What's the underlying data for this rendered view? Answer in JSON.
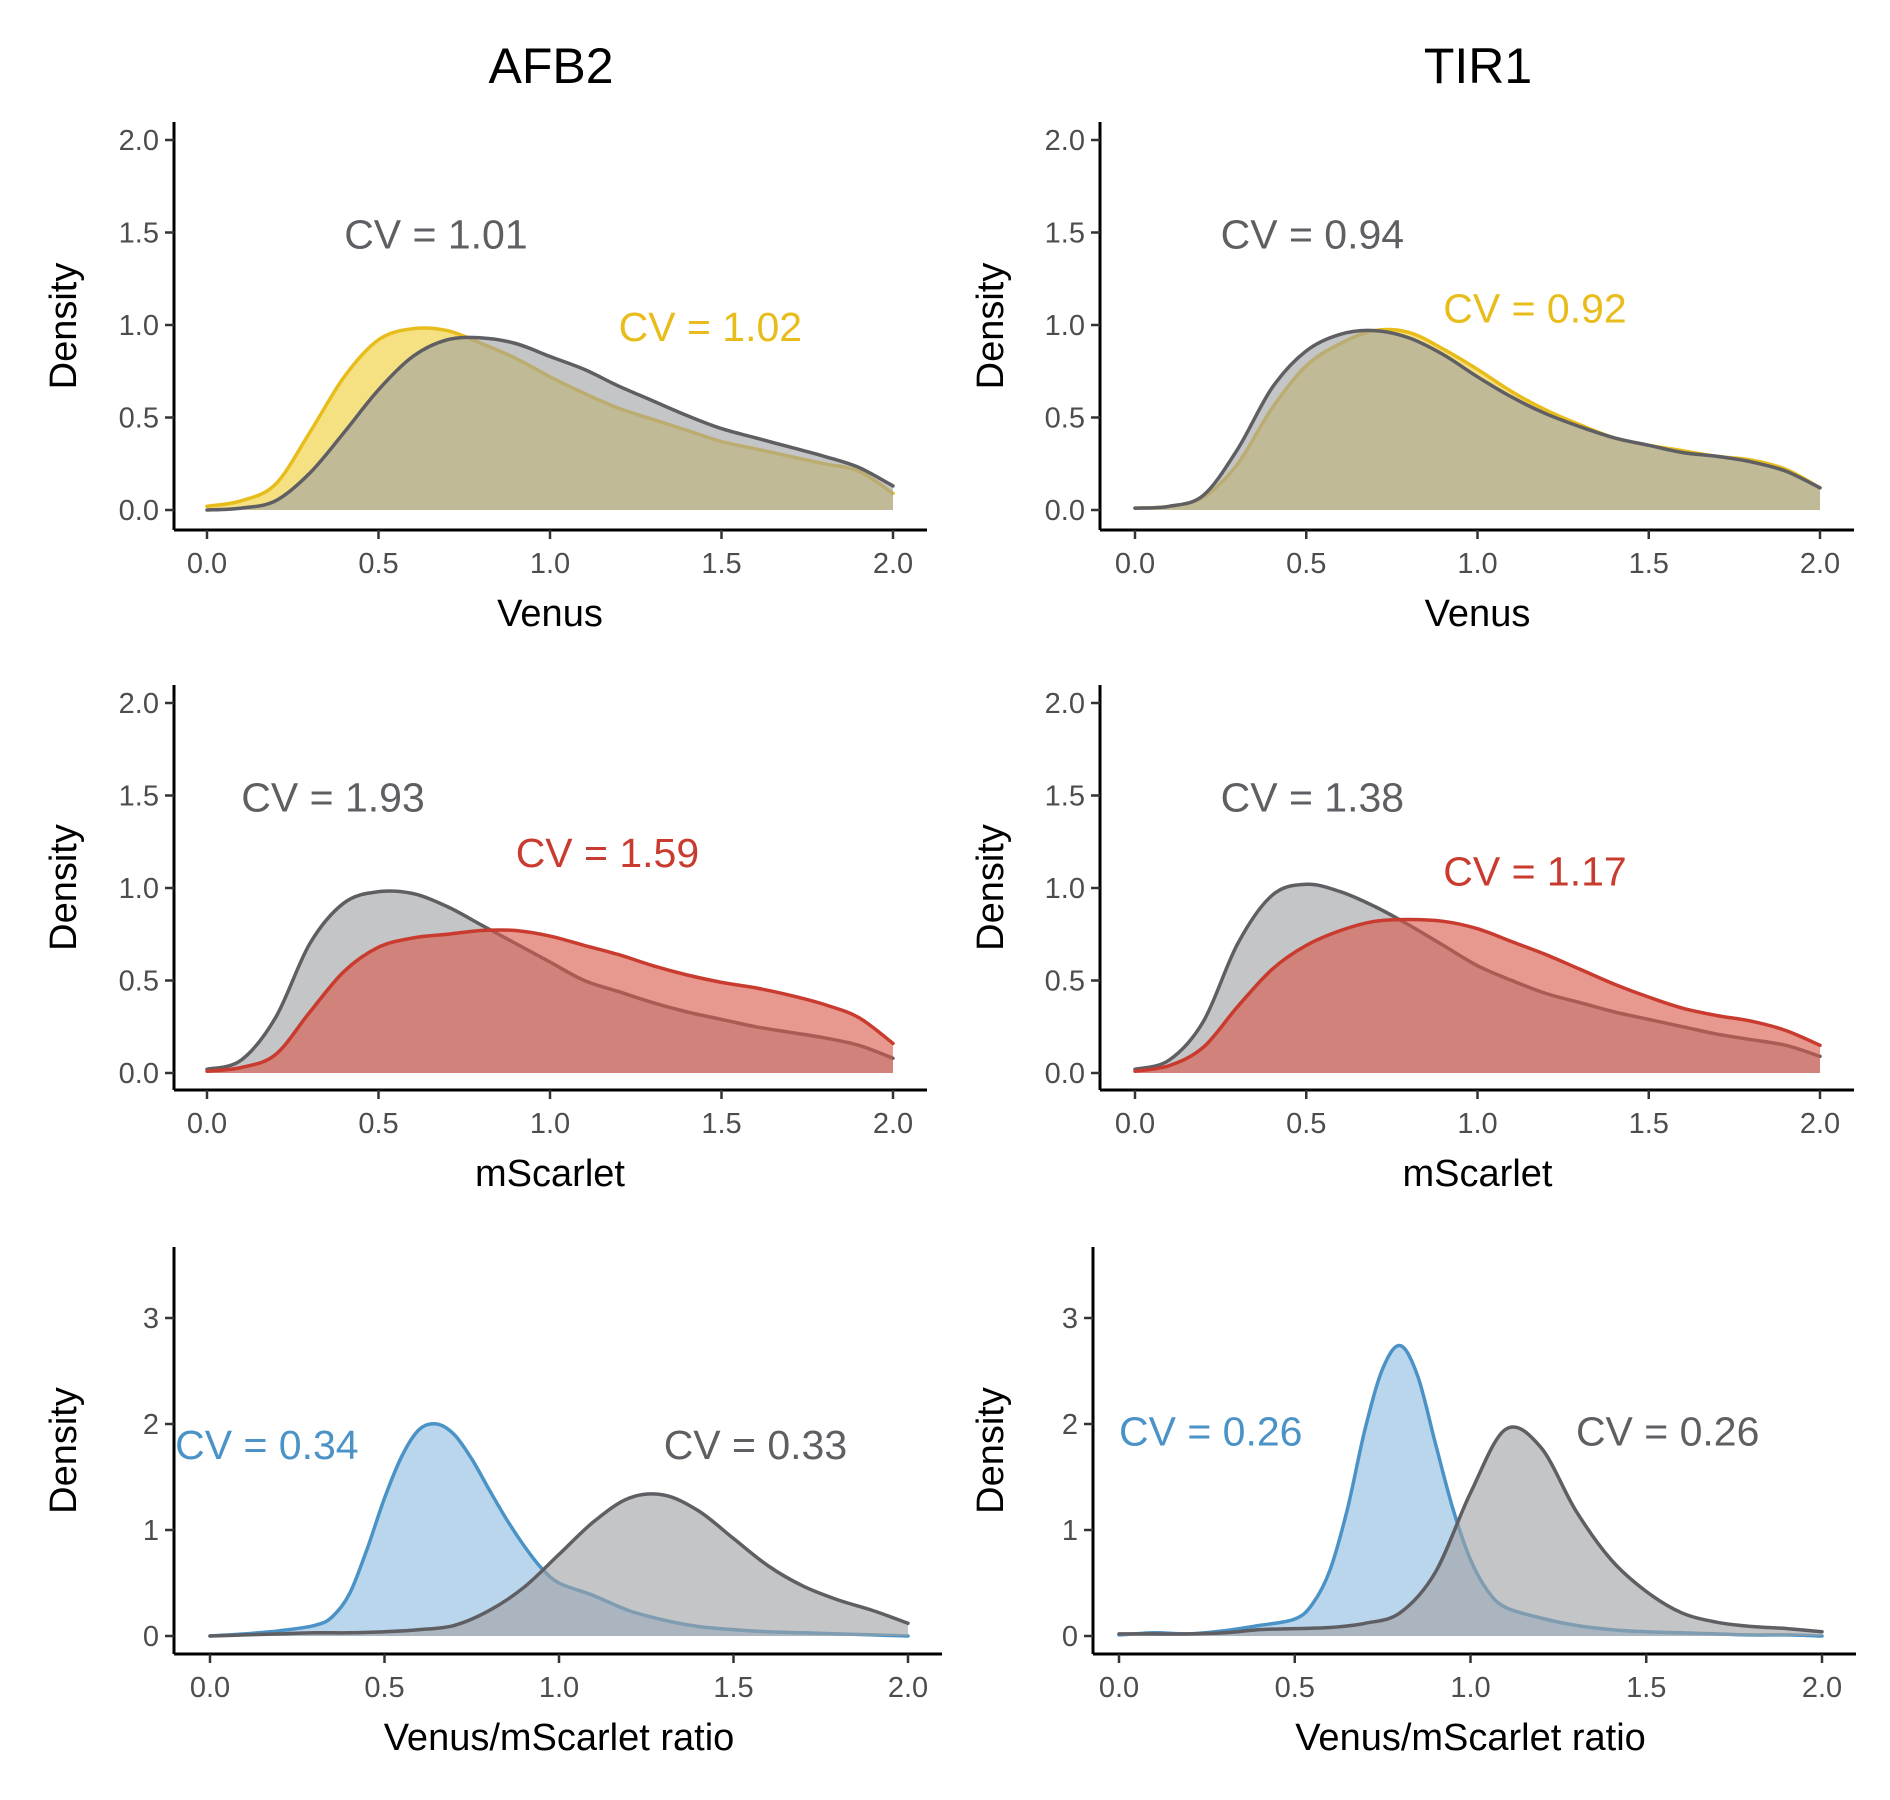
{
  "columns": [
    "AFB2",
    "TIR1"
  ],
  "colors": {
    "gray": "#5f5f63",
    "gray_fill": "#9fa1a4",
    "venus": "#e8bd1b",
    "venus_fill": "#f0cf36",
    "mscarlet": "#c93b2e",
    "mscarlet_fill": "#d8584b",
    "ratio": "#4b93c6",
    "ratio_fill": "#8fbde0"
  },
  "chart_data": [
    {
      "type": "area",
      "panel": "AFB2 Venus",
      "xlabel": "Venus",
      "ylabel": "Density",
      "xlim": [
        0,
        2
      ],
      "ylim": [
        0,
        2
      ],
      "xticks": [
        "0.0",
        "0.5",
        "1.0",
        "1.5",
        "2.0"
      ],
      "yticks": [
        "0.0",
        "0.5",
        "1.0",
        "1.5",
        "2.0"
      ],
      "series": [
        {
          "color": "venus",
          "x": [
            0,
            0.1,
            0.2,
            0.3,
            0.4,
            0.5,
            0.6,
            0.7,
            0.8,
            0.9,
            1.0,
            1.1,
            1.2,
            1.3,
            1.4,
            1.5,
            1.6,
            1.7,
            1.8,
            1.9,
            2.0
          ],
          "y": [
            0.02,
            0.05,
            0.14,
            0.42,
            0.72,
            0.92,
            0.98,
            0.97,
            0.9,
            0.82,
            0.72,
            0.63,
            0.55,
            0.49,
            0.43,
            0.37,
            0.33,
            0.29,
            0.25,
            0.21,
            0.09
          ]
        },
        {
          "color": "gray",
          "x": [
            0,
            0.1,
            0.2,
            0.3,
            0.4,
            0.5,
            0.6,
            0.7,
            0.8,
            0.9,
            1.0,
            1.1,
            1.2,
            1.3,
            1.4,
            1.5,
            1.6,
            1.7,
            1.8,
            1.9,
            2.0
          ],
          "y": [
            0.0,
            0.01,
            0.05,
            0.2,
            0.42,
            0.65,
            0.83,
            0.92,
            0.93,
            0.9,
            0.83,
            0.76,
            0.67,
            0.59,
            0.51,
            0.44,
            0.39,
            0.34,
            0.29,
            0.23,
            0.13
          ]
        }
      ],
      "labels": [
        {
          "text": "CV = 1.01",
          "color": "gray",
          "x": 0.4,
          "y": 1.49
        },
        {
          "text": "CV = 1.02",
          "color": "venus",
          "x": 1.2,
          "y": 0.99
        }
      ]
    },
    {
      "type": "area",
      "panel": "TIR1 Venus",
      "xlabel": "Venus",
      "ylabel": "Density",
      "xlim": [
        0,
        2
      ],
      "ylim": [
        0,
        2
      ],
      "xticks": [
        "0.0",
        "0.5",
        "1.0",
        "1.5",
        "2.0"
      ],
      "yticks": [
        "0.0",
        "0.5",
        "1.0",
        "1.5",
        "2.0"
      ],
      "series": [
        {
          "color": "venus",
          "x": [
            0,
            0.1,
            0.2,
            0.3,
            0.4,
            0.5,
            0.6,
            0.7,
            0.8,
            0.9,
            1.0,
            1.1,
            1.2,
            1.3,
            1.4,
            1.5,
            1.6,
            1.7,
            1.8,
            1.9,
            2.0
          ],
          "y": [
            0.01,
            0.02,
            0.07,
            0.25,
            0.55,
            0.78,
            0.9,
            0.97,
            0.96,
            0.87,
            0.76,
            0.64,
            0.54,
            0.46,
            0.39,
            0.35,
            0.32,
            0.29,
            0.27,
            0.22,
            0.12
          ]
        },
        {
          "color": "gray",
          "x": [
            0,
            0.1,
            0.2,
            0.3,
            0.4,
            0.5,
            0.6,
            0.7,
            0.8,
            0.9,
            1.0,
            1.1,
            1.2,
            1.3,
            1.4,
            1.5,
            1.6,
            1.7,
            1.8,
            1.9,
            2.0
          ],
          "y": [
            0.01,
            0.02,
            0.08,
            0.33,
            0.66,
            0.86,
            0.95,
            0.97,
            0.93,
            0.84,
            0.72,
            0.61,
            0.52,
            0.45,
            0.39,
            0.35,
            0.31,
            0.29,
            0.26,
            0.21,
            0.12
          ]
        }
      ],
      "labels": [
        {
          "text": "CV = 0.94",
          "color": "gray",
          "x": 0.25,
          "y": 1.49
        },
        {
          "text": "CV = 0.92",
          "color": "venus",
          "x": 0.9,
          "y": 1.09
        }
      ]
    },
    {
      "type": "area",
      "panel": "AFB2 mScarlet",
      "xlabel": "mScarlet",
      "ylabel": "Density",
      "xlim": [
        0,
        2
      ],
      "ylim": [
        0,
        2
      ],
      "xticks": [
        "0.0",
        "0.5",
        "1.0",
        "1.5",
        "2.0"
      ],
      "yticks": [
        "0.0",
        "0.5",
        "1.0",
        "1.5",
        "2.0"
      ],
      "series": [
        {
          "color": "gray",
          "x": [
            0,
            0.1,
            0.2,
            0.3,
            0.4,
            0.5,
            0.6,
            0.7,
            0.8,
            0.9,
            1.0,
            1.1,
            1.2,
            1.3,
            1.4,
            1.5,
            1.6,
            1.7,
            1.8,
            1.9,
            2.0
          ],
          "y": [
            0.02,
            0.07,
            0.3,
            0.7,
            0.92,
            0.98,
            0.97,
            0.9,
            0.8,
            0.7,
            0.6,
            0.5,
            0.44,
            0.38,
            0.33,
            0.29,
            0.25,
            0.22,
            0.19,
            0.15,
            0.08
          ]
        },
        {
          "color": "mscarlet",
          "x": [
            0,
            0.1,
            0.2,
            0.3,
            0.4,
            0.5,
            0.6,
            0.7,
            0.8,
            0.9,
            1.0,
            1.1,
            1.2,
            1.3,
            1.4,
            1.5,
            1.6,
            1.7,
            1.8,
            1.9,
            2.0
          ],
          "y": [
            0.01,
            0.03,
            0.1,
            0.33,
            0.55,
            0.68,
            0.73,
            0.75,
            0.77,
            0.77,
            0.74,
            0.69,
            0.64,
            0.58,
            0.53,
            0.49,
            0.46,
            0.42,
            0.37,
            0.3,
            0.16
          ]
        }
      ],
      "labels": [
        {
          "text": "CV = 1.93",
          "color": "gray",
          "x": 0.1,
          "y": 1.49
        },
        {
          "text": "CV = 1.59",
          "color": "mscarlet",
          "x": 0.9,
          "y": 1.19
        }
      ]
    },
    {
      "type": "area",
      "panel": "TIR1 mScarlet",
      "xlabel": "mScarlet",
      "ylabel": "Density",
      "xlim": [
        0,
        2
      ],
      "ylim": [
        0,
        2
      ],
      "xticks": [
        "0.0",
        "0.5",
        "1.0",
        "1.5",
        "2.0"
      ],
      "yticks": [
        "0.0",
        "0.5",
        "1.0",
        "1.5",
        "2.0"
      ],
      "series": [
        {
          "color": "gray",
          "x": [
            0,
            0.1,
            0.2,
            0.3,
            0.4,
            0.5,
            0.6,
            0.7,
            0.8,
            0.9,
            1.0,
            1.1,
            1.2,
            1.3,
            1.4,
            1.5,
            1.6,
            1.7,
            1.8,
            1.9,
            2.0
          ],
          "y": [
            0.02,
            0.07,
            0.28,
            0.7,
            0.96,
            1.02,
            0.98,
            0.9,
            0.8,
            0.69,
            0.58,
            0.5,
            0.43,
            0.38,
            0.33,
            0.29,
            0.25,
            0.21,
            0.18,
            0.15,
            0.09
          ]
        },
        {
          "color": "mscarlet",
          "x": [
            0,
            0.1,
            0.2,
            0.3,
            0.4,
            0.5,
            0.6,
            0.7,
            0.8,
            0.9,
            1.0,
            1.1,
            1.2,
            1.3,
            1.4,
            1.5,
            1.6,
            1.7,
            1.8,
            1.9,
            2.0
          ],
          "y": [
            0.01,
            0.04,
            0.14,
            0.36,
            0.56,
            0.69,
            0.77,
            0.82,
            0.83,
            0.82,
            0.78,
            0.71,
            0.64,
            0.56,
            0.48,
            0.41,
            0.35,
            0.31,
            0.28,
            0.23,
            0.15
          ]
        }
      ],
      "labels": [
        {
          "text": "CV = 1.38",
          "color": "gray",
          "x": 0.25,
          "y": 1.49
        },
        {
          "text": "CV = 1.17",
          "color": "mscarlet",
          "x": 0.9,
          "y": 1.09
        }
      ]
    },
    {
      "type": "area",
      "panel": "AFB2 ratio",
      "xlabel": "Venus/mScarlet ratio",
      "ylabel": "Density",
      "xlim": [
        -0.1,
        2.05
      ],
      "ylim": [
        0,
        3.6
      ],
      "xticks": [
        "0.0",
        "0.5",
        "1.0",
        "1.5",
        "2.0"
      ],
      "yticks": [
        "0",
        "1",
        "2",
        "3"
      ],
      "series": [
        {
          "color": "ratio",
          "x": [
            0,
            0.1,
            0.2,
            0.3,
            0.35,
            0.4,
            0.45,
            0.5,
            0.55,
            0.6,
            0.65,
            0.7,
            0.75,
            0.8,
            0.85,
            0.9,
            0.95,
            1.0,
            1.1,
            1.2,
            1.3,
            1.4,
            1.5,
            1.6,
            1.7,
            1.8,
            1.9,
            2.0
          ],
          "y": [
            0.0,
            0.02,
            0.05,
            0.1,
            0.18,
            0.4,
            0.82,
            1.3,
            1.7,
            1.95,
            2.0,
            1.9,
            1.67,
            1.38,
            1.1,
            0.85,
            0.64,
            0.5,
            0.38,
            0.24,
            0.15,
            0.09,
            0.06,
            0.04,
            0.03,
            0.02,
            0.01,
            0.0
          ]
        },
        {
          "color": "gray",
          "x": [
            0,
            0.1,
            0.2,
            0.3,
            0.4,
            0.5,
            0.6,
            0.7,
            0.8,
            0.9,
            1.0,
            1.1,
            1.2,
            1.3,
            1.4,
            1.5,
            1.6,
            1.7,
            1.8,
            1.9,
            2.0
          ],
          "y": [
            0.0,
            0.01,
            0.02,
            0.03,
            0.03,
            0.04,
            0.06,
            0.1,
            0.24,
            0.46,
            0.77,
            1.08,
            1.3,
            1.33,
            1.18,
            0.92,
            0.66,
            0.47,
            0.34,
            0.24,
            0.12
          ]
        }
      ],
      "labels": [
        {
          "text": "CV = 0.34",
          "color": "ratio",
          "x": -0.1,
          "y": 1.8
        },
        {
          "text": "CV = 0.33",
          "color": "gray",
          "x": 1.3,
          "y": 1.8
        }
      ]
    },
    {
      "type": "area",
      "panel": "TIR1 ratio",
      "xlabel": "Venus/mScarlet ratio",
      "ylabel": "Density",
      "xlim": [
        -0.05,
        2.1
      ],
      "ylim": [
        0,
        3.6
      ],
      "xticks": [
        "0.0",
        "0.5",
        "1.0",
        "1.5",
        "2.0"
      ],
      "yticks": [
        "0",
        "1",
        "2",
        "3"
      ],
      "series": [
        {
          "color": "ratio",
          "x": [
            0,
            0.1,
            0.2,
            0.3,
            0.4,
            0.5,
            0.55,
            0.6,
            0.65,
            0.7,
            0.75,
            0.8,
            0.85,
            0.9,
            0.95,
            1.0,
            1.05,
            1.1,
            1.2,
            1.3,
            1.4,
            1.5,
            1.6,
            1.7,
            1.8,
            1.9,
            2.0
          ],
          "y": [
            0.01,
            0.03,
            0.02,
            0.05,
            0.1,
            0.16,
            0.3,
            0.62,
            1.2,
            1.95,
            2.52,
            2.74,
            2.45,
            1.82,
            1.2,
            0.72,
            0.42,
            0.27,
            0.17,
            0.1,
            0.06,
            0.04,
            0.03,
            0.02,
            0.01,
            0.01,
            0.0
          ]
        },
        {
          "color": "gray",
          "x": [
            0,
            0.1,
            0.2,
            0.3,
            0.4,
            0.5,
            0.6,
            0.7,
            0.8,
            0.9,
            1.0,
            1.1,
            1.2,
            1.3,
            1.4,
            1.5,
            1.6,
            1.7,
            1.8,
            1.9,
            2.0
          ],
          "y": [
            0.02,
            0.02,
            0.02,
            0.03,
            0.06,
            0.07,
            0.08,
            0.12,
            0.22,
            0.6,
            1.35,
            1.95,
            1.78,
            1.18,
            0.72,
            0.42,
            0.22,
            0.13,
            0.09,
            0.07,
            0.04
          ]
        }
      ],
      "labels": [
        {
          "text": "CV = 0.26",
          "color": "ratio",
          "x": 0.0,
          "y": 1.93
        },
        {
          "text": "CV = 0.26",
          "color": "gray",
          "x": 1.3,
          "y": 1.93
        }
      ]
    }
  ]
}
